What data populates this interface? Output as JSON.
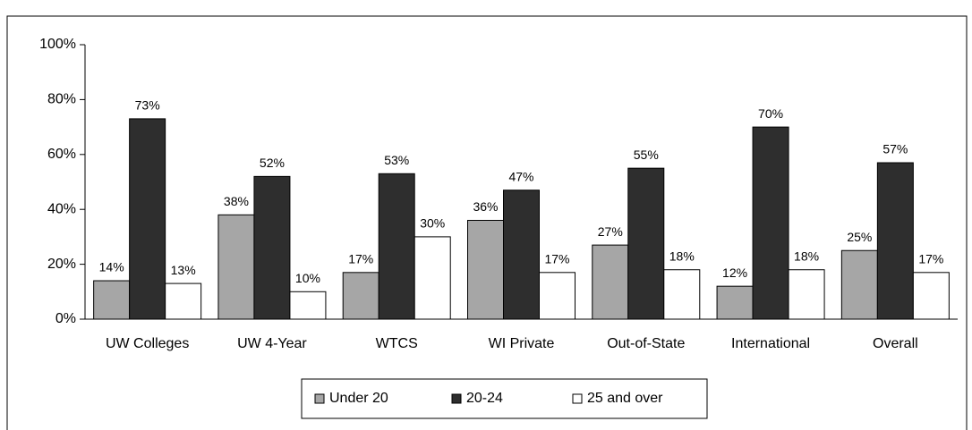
{
  "chart_data": {
    "type": "bar",
    "categories": [
      "UW Colleges",
      "UW 4-Year",
      "WTCS",
      "WI Private",
      "Out-of-State",
      "International",
      "Overall"
    ],
    "series": [
      {
        "name": "Under 20",
        "color": "#a6a6a6",
        "values": [
          14,
          38,
          17,
          36,
          27,
          12,
          25
        ],
        "value_labels": [
          "14%",
          "38%",
          "17%",
          "36%",
          "27%",
          "12%",
          "25%"
        ]
      },
      {
        "name": "20-24",
        "color": "#2e2e2e",
        "values": [
          73,
          52,
          53,
          47,
          55,
          70,
          57
        ],
        "value_labels": [
          "73%",
          "52%",
          "53%",
          "47%",
          "55%",
          "70%",
          "57%"
        ]
      },
      {
        "name": "25 and over",
        "color": "#ffffff",
        "values": [
          13,
          10,
          30,
          17,
          18,
          18,
          17
        ],
        "value_labels": [
          "13%",
          "10%",
          "30%",
          "17%",
          "18%",
          "18%",
          "17%"
        ]
      }
    ],
    "ylim": [
      0,
      100
    ],
    "yticks": [
      {
        "value": 0,
        "label": "0%"
      },
      {
        "value": 20,
        "label": "20%"
      },
      {
        "value": 40,
        "label": "40%"
      },
      {
        "value": 60,
        "label": "60%"
      },
      {
        "value": 80,
        "label": "80%"
      },
      {
        "value": 100,
        "label": "100%"
      }
    ],
    "legend": "bottom"
  }
}
